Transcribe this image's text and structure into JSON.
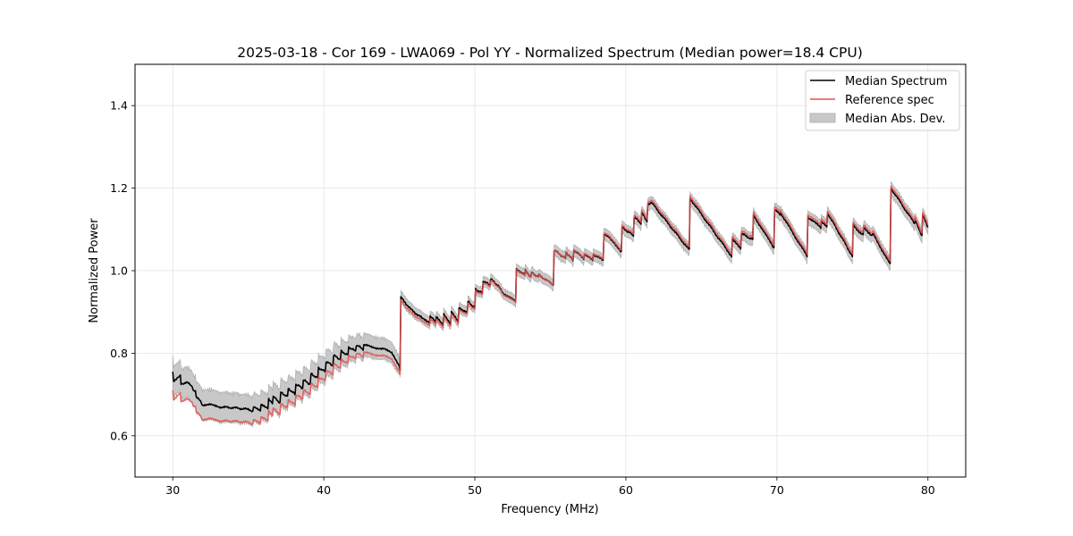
{
  "chart_data": {
    "type": "line",
    "title": "2025-03-18 - Cor 169 - LWA069 - Pol YY - Normalized Spectrum (Median power=18.4 CPU)",
    "xlabel": "Frequency (MHz)",
    "ylabel": "Normalized Power",
    "xlim": [
      27.5,
      82.5
    ],
    "ylim": [
      0.5,
      1.5
    ],
    "xticks": [
      30,
      40,
      50,
      60,
      70,
      80
    ],
    "xtick_labels": [
      "30",
      "40",
      "50",
      "60",
      "70",
      "80"
    ],
    "yticks": [
      0.6,
      0.8,
      1.0,
      1.2,
      1.4
    ],
    "ytick_labels": [
      "0.6",
      "0.8",
      "1.0",
      "1.2",
      "1.4"
    ],
    "grid": true,
    "legend_position": "top-right",
    "legend": [
      {
        "label": "Median Spectrum",
        "kind": "line",
        "color": "#000000"
      },
      {
        "label": "Reference spec",
        "kind": "line",
        "color": "#e85050"
      },
      {
        "label": "Median Abs. Dev.",
        "kind": "patch",
        "color": "#c8c8c8"
      }
    ],
    "series": [
      {
        "name": "Median Spectrum",
        "color": "#000000",
        "x": [
          30.0,
          30.05,
          30.5,
          30.55,
          30.9,
          31.3,
          31.35,
          31.5,
          31.55,
          31.9,
          31.95,
          32.5,
          33.0,
          34.0,
          35.0,
          35.3,
          35.35,
          35.8,
          35.85,
          36.3,
          36.35,
          36.6,
          36.65,
          37.1,
          37.15,
          37.6,
          37.65,
          38.1,
          38.15,
          38.6,
          38.65,
          39.1,
          39.15,
          39.6,
          39.65,
          40.1,
          40.15,
          40.6,
          40.65,
          41.1,
          41.15,
          41.6,
          41.65,
          42.1,
          42.15,
          42.6,
          42.65,
          43.2,
          44.0,
          44.5,
          45.0,
          45.05,
          45.1,
          45.8,
          46.5,
          47.0,
          47.05,
          47.4,
          47.45,
          47.9,
          47.95,
          48.4,
          48.45,
          48.9,
          48.95,
          49.5,
          49.55,
          50.0,
          50.05,
          50.5,
          50.55,
          51.0,
          51.05,
          51.5,
          51.9,
          52.7,
          52.75,
          53.3,
          53.35,
          53.7,
          53.75,
          54.2,
          54.25,
          55.2,
          55.25,
          56.0,
          56.05,
          56.5,
          56.55,
          57.2,
          57.25,
          57.8,
          57.85,
          58.5,
          58.55,
          59.2,
          59.7,
          59.75,
          60.5,
          60.55,
          61.0,
          61.05,
          61.4,
          61.45,
          61.7,
          64.2,
          64.25,
          67.0,
          67.05,
          67.6,
          67.65,
          68.4,
          68.45,
          69.8,
          69.85,
          70.2,
          70.25,
          72.0,
          72.05,
          72.9,
          72.95,
          73.3,
          73.35,
          75.0,
          75.05,
          75.7,
          75.75,
          76.3,
          76.35,
          77.5,
          77.55,
          79.1,
          79.15,
          79.6,
          79.65,
          80.0
        ],
        "values": [
          0.755,
          0.73,
          0.745,
          0.725,
          0.73,
          0.72,
          0.71,
          0.71,
          0.695,
          0.68,
          0.675,
          0.675,
          0.67,
          0.668,
          0.664,
          0.66,
          0.67,
          0.66,
          0.675,
          0.665,
          0.69,
          0.68,
          0.695,
          0.68,
          0.705,
          0.695,
          0.715,
          0.7,
          0.725,
          0.715,
          0.735,
          0.725,
          0.75,
          0.74,
          0.765,
          0.755,
          0.78,
          0.77,
          0.795,
          0.785,
          0.805,
          0.795,
          0.815,
          0.805,
          0.82,
          0.81,
          0.82,
          0.815,
          0.81,
          0.8,
          0.77,
          0.76,
          0.935,
          0.905,
          0.885,
          0.875,
          0.89,
          0.875,
          0.89,
          0.87,
          0.895,
          0.87,
          0.9,
          0.875,
          0.91,
          0.9,
          0.925,
          0.91,
          0.955,
          0.945,
          0.975,
          0.965,
          0.98,
          0.965,
          0.945,
          0.925,
          1.005,
          0.99,
          1.0,
          0.985,
          0.995,
          0.985,
          0.99,
          0.965,
          1.05,
          1.03,
          1.045,
          1.025,
          1.05,
          1.03,
          1.04,
          1.025,
          1.04,
          1.025,
          1.09,
          1.07,
          1.045,
          1.105,
          1.085,
          1.13,
          1.115,
          1.14,
          1.12,
          1.16,
          1.165,
          1.05,
          1.175,
          1.035,
          1.075,
          1.055,
          1.09,
          1.075,
          1.135,
          1.055,
          1.15,
          1.135,
          1.14,
          1.035,
          1.13,
          1.105,
          1.12,
          1.105,
          1.14,
          1.035,
          1.11,
          1.085,
          1.105,
          1.085,
          1.09,
          1.015,
          1.2,
          1.115,
          1.125,
          1.085,
          1.135,
          1.105
        ],
        "ref_offset_note": "Reference spectrum below median at low frequency, nearly coincident above 45 MHz"
      },
      {
        "name": "Reference spec",
        "color": "#e85050",
        "offset_breakpoints": {
          "x": [
            30,
            32,
            36,
            40,
            44.9,
            45.1,
            50,
            55,
            60,
            62,
            80
          ],
          "delta": [
            -0.045,
            -0.035,
            -0.03,
            -0.022,
            -0.015,
            -0.008,
            -0.004,
            0.0,
            0.004,
            0.006,
            0.006
          ]
        }
      },
      {
        "name": "Median Abs. Dev.",
        "color": "#c8c8c8",
        "halfwidth_breakpoints": {
          "x": [
            30,
            32,
            36,
            40,
            44.9,
            45.1,
            50,
            60,
            80
          ],
          "halfwidth": [
            0.03,
            0.03,
            0.028,
            0.026,
            0.02,
            0.012,
            0.01,
            0.012,
            0.014
          ]
        }
      }
    ]
  }
}
